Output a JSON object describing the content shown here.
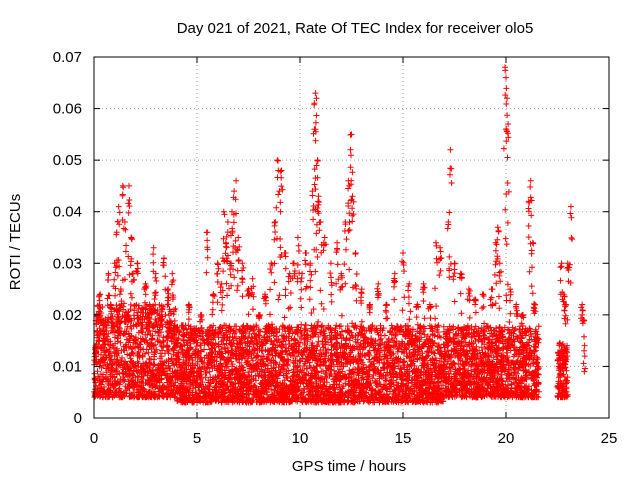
{
  "chart_data": {
    "type": "scatter",
    "title": "Day 021 of 2021, Rate Of TEC Index for receiver olo5",
    "xlabel": "GPS time / hours",
    "ylabel": "ROTI / TECUs",
    "xlim": [
      0,
      25
    ],
    "ylim": [
      0,
      0.07
    ],
    "xticks": [
      0,
      5,
      10,
      15,
      20,
      25
    ],
    "xtick_labels": [
      "0",
      "5",
      "10",
      "15",
      "20",
      "25"
    ],
    "yticks": [
      0,
      0.01,
      0.02,
      0.03,
      0.04,
      0.05,
      0.06,
      0.07
    ],
    "ytick_labels": [
      "0",
      "0.01",
      "0.02",
      "0.03",
      "0.04",
      "0.05",
      "0.06",
      "0.07"
    ],
    "grid": true,
    "marker": "+",
    "colors": {
      "points": "#ff0000",
      "grid": "#a0a0a0",
      "axes": "#000000"
    },
    "series": [
      {
        "name": "ROTI",
        "points": [
          [
            0.1,
            0.012
          ],
          [
            0.2,
            0.02
          ],
          [
            0.3,
            0.024
          ],
          [
            0.5,
            0.015
          ],
          [
            0.7,
            0.028
          ],
          [
            0.8,
            0.022
          ],
          [
            0.9,
            0.018
          ],
          [
            1.0,
            0.03
          ],
          [
            1.1,
            0.036
          ],
          [
            1.2,
            0.041
          ],
          [
            1.3,
            0.025
          ],
          [
            1.4,
            0.045
          ],
          [
            1.5,
            0.038
          ],
          [
            1.6,
            0.02
          ],
          [
            1.7,
            0.045
          ],
          [
            1.8,
            0.035
          ],
          [
            1.9,
            0.028
          ],
          [
            2.1,
            0.03
          ],
          [
            2.3,
            0.018
          ],
          [
            2.5,
            0.026
          ],
          [
            2.7,
            0.022
          ],
          [
            2.9,
            0.033
          ],
          [
            3.0,
            0.028
          ],
          [
            3.2,
            0.02
          ],
          [
            3.4,
            0.031
          ],
          [
            3.6,
            0.025
          ],
          [
            3.8,
            0.028
          ],
          [
            4.0,
            0.014
          ],
          [
            4.3,
            0.018
          ],
          [
            4.6,
            0.022
          ],
          [
            4.9,
            0.016
          ],
          [
            5.2,
            0.02
          ],
          [
            5.5,
            0.036
          ],
          [
            5.8,
            0.024
          ],
          [
            6.0,
            0.03
          ],
          [
            6.2,
            0.026
          ],
          [
            6.3,
            0.04
          ],
          [
            6.4,
            0.034
          ],
          [
            6.5,
            0.038
          ],
          [
            6.6,
            0.03
          ],
          [
            6.7,
            0.04
          ],
          [
            6.8,
            0.044
          ],
          [
            6.9,
            0.046
          ],
          [
            7.0,
            0.035
          ],
          [
            7.2,
            0.03
          ],
          [
            7.5,
            0.025
          ],
          [
            7.7,
            0.027
          ],
          [
            8.0,
            0.02
          ],
          [
            8.3,
            0.024
          ],
          [
            8.6,
            0.03
          ],
          [
            8.8,
            0.038
          ],
          [
            8.9,
            0.05
          ],
          [
            9.0,
            0.044
          ],
          [
            9.1,
            0.048
          ],
          [
            9.3,
            0.032
          ],
          [
            9.5,
            0.028
          ],
          [
            9.7,
            0.03
          ],
          [
            9.9,
            0.035
          ],
          [
            10.1,
            0.028
          ],
          [
            10.3,
            0.032
          ],
          [
            10.5,
            0.03
          ],
          [
            10.6,
            0.044
          ],
          [
            10.7,
            0.056
          ],
          [
            10.75,
            0.063
          ],
          [
            10.8,
            0.062
          ],
          [
            10.85,
            0.05
          ],
          [
            10.9,
            0.043
          ],
          [
            11.0,
            0.038
          ],
          [
            11.2,
            0.035
          ],
          [
            11.5,
            0.03
          ],
          [
            11.8,
            0.034
          ],
          [
            12.0,
            0.028
          ],
          [
            12.2,
            0.038
          ],
          [
            12.35,
            0.046
          ],
          [
            12.45,
            0.052
          ],
          [
            12.5,
            0.055
          ],
          [
            12.55,
            0.043
          ],
          [
            12.7,
            0.032
          ],
          [
            13.0,
            0.025
          ],
          [
            13.4,
            0.022
          ],
          [
            13.8,
            0.026
          ],
          [
            14.2,
            0.022
          ],
          [
            14.6,
            0.028
          ],
          [
            15.0,
            0.032
          ],
          [
            15.3,
            0.026
          ],
          [
            15.7,
            0.022
          ],
          [
            16.0,
            0.026
          ],
          [
            16.3,
            0.022
          ],
          [
            16.6,
            0.034
          ],
          [
            16.8,
            0.033
          ],
          [
            17.2,
            0.038
          ],
          [
            17.3,
            0.052
          ],
          [
            17.5,
            0.03
          ],
          [
            17.8,
            0.028
          ],
          [
            18.2,
            0.025
          ],
          [
            18.5,
            0.023
          ],
          [
            18.9,
            0.024
          ],
          [
            19.3,
            0.025
          ],
          [
            19.5,
            0.034
          ],
          [
            19.6,
            0.037
          ],
          [
            19.7,
            0.03
          ],
          [
            19.95,
            0.068
          ],
          [
            20.0,
            0.066
          ],
          [
            20.05,
            0.062
          ],
          [
            20.1,
            0.057
          ],
          [
            20.2,
            0.025
          ],
          [
            20.5,
            0.022
          ],
          [
            20.8,
            0.02
          ],
          [
            21.1,
            0.042
          ],
          [
            21.2,
            0.046
          ],
          [
            21.3,
            0.034
          ],
          [
            21.4,
            0.022
          ],
          [
            22.7,
            0.03
          ],
          [
            22.8,
            0.024
          ],
          [
            22.9,
            0.022
          ],
          [
            23.0,
            0.03
          ],
          [
            23.15,
            0.041
          ],
          [
            23.7,
            0.022
          ],
          [
            23.75,
            0.019
          ],
          [
            23.8,
            0.009
          ]
        ]
      }
    ],
    "dense_band": {
      "description": "baseline cloud of ROTI values",
      "ranges": [
        [
          0.0,
          4.0,
          0.004,
          0.022
        ],
        [
          4.0,
          17.0,
          0.003,
          0.018
        ],
        [
          17.0,
          21.6,
          0.004,
          0.018
        ],
        [
          22.5,
          23.0,
          0.004,
          0.015
        ]
      ]
    }
  }
}
